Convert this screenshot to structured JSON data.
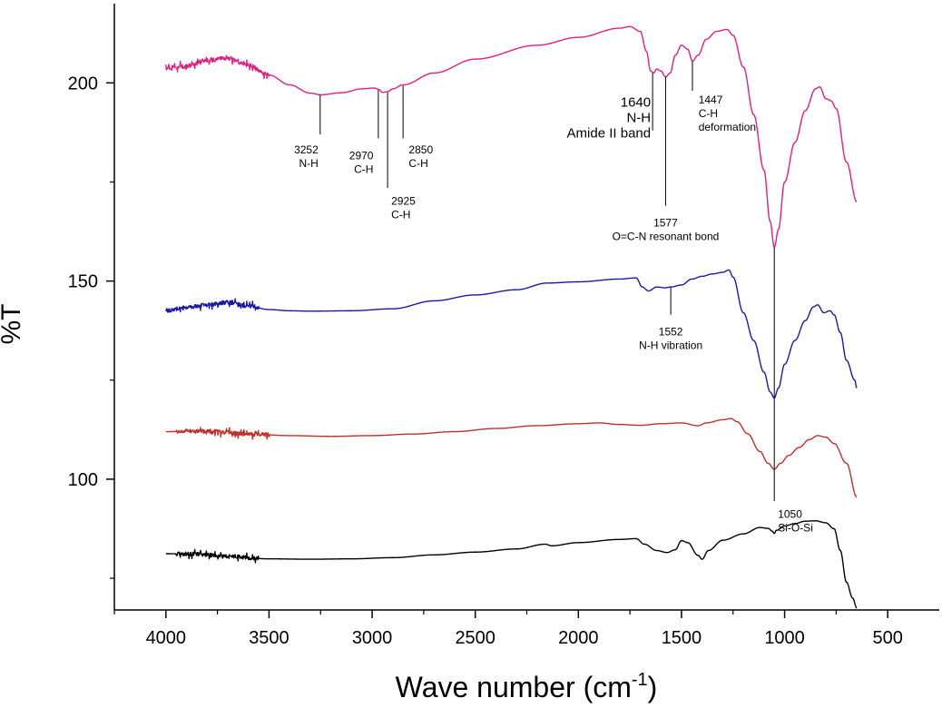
{
  "chart_data": {
    "type": "line",
    "title": "",
    "xlabel": "Wave number (cm",
    "xlabel_sup": "-1",
    "xlabel_close": ")",
    "ylabel": "%T",
    "xlim": [
      4250,
      250
    ],
    "ylim": [
      67,
      220
    ],
    "x_ticks": [
      {
        "value": 4000,
        "label": "4000"
      },
      {
        "value": 3500,
        "label": "3500"
      },
      {
        "value": 3000,
        "label": "3000"
      },
      {
        "value": 2500,
        "label": "2500"
      },
      {
        "value": 2000,
        "label": "2000"
      },
      {
        "value": 1500,
        "label": "1500"
      },
      {
        "value": 1000,
        "label": "1000"
      },
      {
        "value": 500,
        "label": "500"
      }
    ],
    "y_ticks": [
      {
        "value": 200,
        "label": "200"
      },
      {
        "value": 150,
        "label": "150"
      },
      {
        "value": 100,
        "label": "100"
      }
    ],
    "y_minor_ticks": [
      175,
      125,
      75
    ],
    "series": [
      {
        "name": "pink",
        "color": "#e0207f",
        "noise": [
          [
            4000,
            3500,
            0.5
          ]
        ],
        "points": [
          [
            4000,
            203.8
          ],
          [
            3900,
            204.2
          ],
          [
            3800,
            205.8
          ],
          [
            3700,
            206.2
          ],
          [
            3600,
            204.5
          ],
          [
            3500,
            202.0
          ],
          [
            3400,
            199.5
          ],
          [
            3300,
            197.4
          ],
          [
            3250,
            197.0
          ],
          [
            3150,
            197.5
          ],
          [
            3050,
            198.5
          ],
          [
            2990,
            198.7
          ],
          [
            2970,
            198.4
          ],
          [
            2950,
            197.6
          ],
          [
            2925,
            197.8
          ],
          [
            2900,
            198.5
          ],
          [
            2850,
            199.5
          ],
          [
            2700,
            202.5
          ],
          [
            2500,
            206.0
          ],
          [
            2200,
            209.5
          ],
          [
            2000,
            211.5
          ],
          [
            1800,
            213.8
          ],
          [
            1750,
            214.2
          ],
          [
            1700,
            213.0
          ],
          [
            1670,
            208.0
          ],
          [
            1650,
            203.0
          ],
          [
            1635,
            202.5
          ],
          [
            1620,
            203.5
          ],
          [
            1600,
            203.0
          ],
          [
            1577,
            201.5
          ],
          [
            1555,
            202.5
          ],
          [
            1530,
            207.0
          ],
          [
            1500,
            209.5
          ],
          [
            1470,
            208.5
          ],
          [
            1447,
            205.5
          ],
          [
            1420,
            207.0
          ],
          [
            1380,
            211.0
          ],
          [
            1330,
            213.0
          ],
          [
            1280,
            213.5
          ],
          [
            1250,
            212.0
          ],
          [
            1200,
            204.0
          ],
          [
            1150,
            192.0
          ],
          [
            1100,
            178.0
          ],
          [
            1070,
            165.0
          ],
          [
            1050,
            158.5
          ],
          [
            1030,
            163.0
          ],
          [
            1000,
            175.0
          ],
          [
            950,
            185.0
          ],
          [
            900,
            193.0
          ],
          [
            850,
            198.5
          ],
          [
            830,
            199.0
          ],
          [
            800,
            196.0
          ],
          [
            775,
            195.5
          ],
          [
            750,
            193.5
          ],
          [
            700,
            180.0
          ],
          [
            650,
            170.0
          ]
        ]
      },
      {
        "name": "blue",
        "color": "#1a1aa8",
        "noise": [
          [
            4000,
            3550,
            0.5
          ]
        ],
        "points": [
          [
            4000,
            142.6
          ],
          [
            3900,
            143.3
          ],
          [
            3800,
            144.0
          ],
          [
            3700,
            144.6
          ],
          [
            3600,
            143.7
          ],
          [
            3500,
            142.8
          ],
          [
            3400,
            142.5
          ],
          [
            3300,
            142.4
          ],
          [
            3100,
            142.5
          ],
          [
            2900,
            143.0
          ],
          [
            2700,
            145.0
          ],
          [
            2500,
            146.5
          ],
          [
            2300,
            147.8
          ],
          [
            2150,
            149.5
          ],
          [
            2000,
            149.8
          ],
          [
            1800,
            150.5
          ],
          [
            1720,
            150.8
          ],
          [
            1690,
            148.5
          ],
          [
            1660,
            147.5
          ],
          [
            1620,
            148.5
          ],
          [
            1580,
            148.3
          ],
          [
            1552,
            148.5
          ],
          [
            1500,
            149.0
          ],
          [
            1450,
            150.5
          ],
          [
            1400,
            151.2
          ],
          [
            1350,
            151.8
          ],
          [
            1300,
            152.2
          ],
          [
            1270,
            152.8
          ],
          [
            1250,
            151.0
          ],
          [
            1200,
            142.0
          ],
          [
            1150,
            135.0
          ],
          [
            1100,
            127.0
          ],
          [
            1070,
            122.0
          ],
          [
            1050,
            120.5
          ],
          [
            1030,
            123.0
          ],
          [
            1000,
            129.0
          ],
          [
            950,
            135.0
          ],
          [
            900,
            140.0
          ],
          [
            860,
            143.5
          ],
          [
            840,
            144.0
          ],
          [
            810,
            142.0
          ],
          [
            780,
            142.5
          ],
          [
            760,
            141.5
          ],
          [
            730,
            137.0
          ],
          [
            700,
            130.0
          ],
          [
            660,
            125.0
          ],
          [
            650,
            123.0
          ]
        ]
      },
      {
        "name": "red",
        "color": "#c0302a",
        "noise": [
          [
            3950,
            3500,
            0.5
          ]
        ],
        "points": [
          [
            4000,
            112.0
          ],
          [
            3800,
            112.1
          ],
          [
            3600,
            111.4
          ],
          [
            3400,
            111.0
          ],
          [
            3200,
            110.8
          ],
          [
            3000,
            111.0
          ],
          [
            2800,
            111.4
          ],
          [
            2600,
            112.0
          ],
          [
            2400,
            112.8
          ],
          [
            2200,
            113.5
          ],
          [
            2000,
            114.0
          ],
          [
            1900,
            114.2
          ],
          [
            1800,
            113.8
          ],
          [
            1700,
            113.6
          ],
          [
            1600,
            114.0
          ],
          [
            1500,
            114.2
          ],
          [
            1420,
            113.5
          ],
          [
            1380,
            114.2
          ],
          [
            1300,
            115.0
          ],
          [
            1260,
            115.3
          ],
          [
            1230,
            114.5
          ],
          [
            1180,
            111.5
          ],
          [
            1120,
            107.0
          ],
          [
            1080,
            104.0
          ],
          [
            1050,
            102.5
          ],
          [
            1020,
            104.0
          ],
          [
            980,
            106.0
          ],
          [
            930,
            108.0
          ],
          [
            880,
            110.0
          ],
          [
            840,
            111.0
          ],
          [
            800,
            110.6
          ],
          [
            760,
            109.0
          ],
          [
            700,
            104.0
          ],
          [
            650,
            95.5
          ]
        ]
      },
      {
        "name": "black",
        "color": "#000000",
        "noise": [
          [
            3950,
            3550,
            0.5
          ]
        ],
        "points": [
          [
            4000,
            81.2
          ],
          [
            3850,
            81.1
          ],
          [
            3700,
            80.5
          ],
          [
            3500,
            79.9
          ],
          [
            3300,
            79.8
          ],
          [
            3100,
            79.9
          ],
          [
            2900,
            80.2
          ],
          [
            2700,
            80.9
          ],
          [
            2500,
            81.6
          ],
          [
            2300,
            82.4
          ],
          [
            2160,
            83.6
          ],
          [
            2130,
            83.2
          ],
          [
            2000,
            84.0
          ],
          [
            1800,
            84.8
          ],
          [
            1720,
            85.0
          ],
          [
            1680,
            83.6
          ],
          [
            1620,
            82.0
          ],
          [
            1570,
            81.5
          ],
          [
            1530,
            82.2
          ],
          [
            1500,
            84.5
          ],
          [
            1470,
            84.0
          ],
          [
            1420,
            80.8
          ],
          [
            1400,
            79.8
          ],
          [
            1370,
            82.0
          ],
          [
            1300,
            84.6
          ],
          [
            1200,
            86.2
          ],
          [
            1120,
            87.8
          ],
          [
            1080,
            87.6
          ],
          [
            1060,
            86.9
          ],
          [
            1050,
            86.3
          ],
          [
            1040,
            87.1
          ],
          [
            1000,
            88.2
          ],
          [
            950,
            88.8
          ],
          [
            900,
            89.4
          ],
          [
            850,
            89.5
          ],
          [
            800,
            89.0
          ],
          [
            760,
            87.5
          ],
          [
            730,
            82.0
          ],
          [
            700,
            74.0
          ],
          [
            670,
            70.0
          ],
          [
            650,
            67.5
          ]
        ]
      }
    ],
    "annotations": [
      {
        "x": 3252,
        "y0": 197.0,
        "y1": 187.0,
        "lines": [
          "3252",
          "N-H"
        ],
        "label_x": 3252,
        "label_y": 185.0,
        "anchor": "end",
        "size": "small"
      },
      {
        "x": 2970,
        "y0": 198.2,
        "y1": 186.0,
        "lines": [
          "2970",
          "C-H"
        ],
        "label_x": 2985,
        "label_y": 183.5,
        "anchor": "end",
        "size": "small"
      },
      {
        "x": 2925,
        "y0": 197.6,
        "y1": 173.5,
        "lines": [
          "2925",
          "C-H"
        ],
        "label_x": 2925,
        "label_y": 172.0,
        "anchor": "start",
        "size": "small"
      },
      {
        "x": 2850,
        "y0": 199.3,
        "y1": 186.0,
        "lines": [
          "2850",
          "C-H"
        ],
        "label_x": 2840,
        "label_y": 185.0,
        "anchor": "start",
        "size": "small"
      },
      {
        "x": 1640,
        "y0": 202.5,
        "y1": 188.0,
        "lines": [
          "1640",
          "N-H",
          "Amide II band"
        ],
        "label_x": 1640,
        "label_y": 196.5,
        "anchor": "end",
        "size": "large"
      },
      {
        "x": 1577,
        "y0": 201.5,
        "y1": 169.0,
        "lines": [
          "1577",
          "O=C-N resonant bond"
        ],
        "label_x": 1577,
        "label_y": 166.5,
        "anchor": "middle",
        "size": "small"
      },
      {
        "x": 1447,
        "y0": 205.5,
        "y1": 198.0,
        "lines": [
          "1447",
          "C-H",
          "deformation"
        ],
        "label_x": 1435,
        "label_y": 197.5,
        "anchor": "start",
        "size": "small"
      },
      {
        "x": 1552,
        "y0": 148.5,
        "y1": 141.5,
        "lines": [
          "1552",
          "N-H vibration"
        ],
        "label_x": 1552,
        "label_y": 139.0,
        "anchor": "middle",
        "size": "small"
      },
      {
        "x": 1050,
        "y0": 158.5,
        "y1": 94.5,
        "lines": [
          "1050",
          "Si-O-Si"
        ],
        "label_x": 1050,
        "label_y": 93.0,
        "anchor": "start",
        "size": "small"
      }
    ]
  }
}
